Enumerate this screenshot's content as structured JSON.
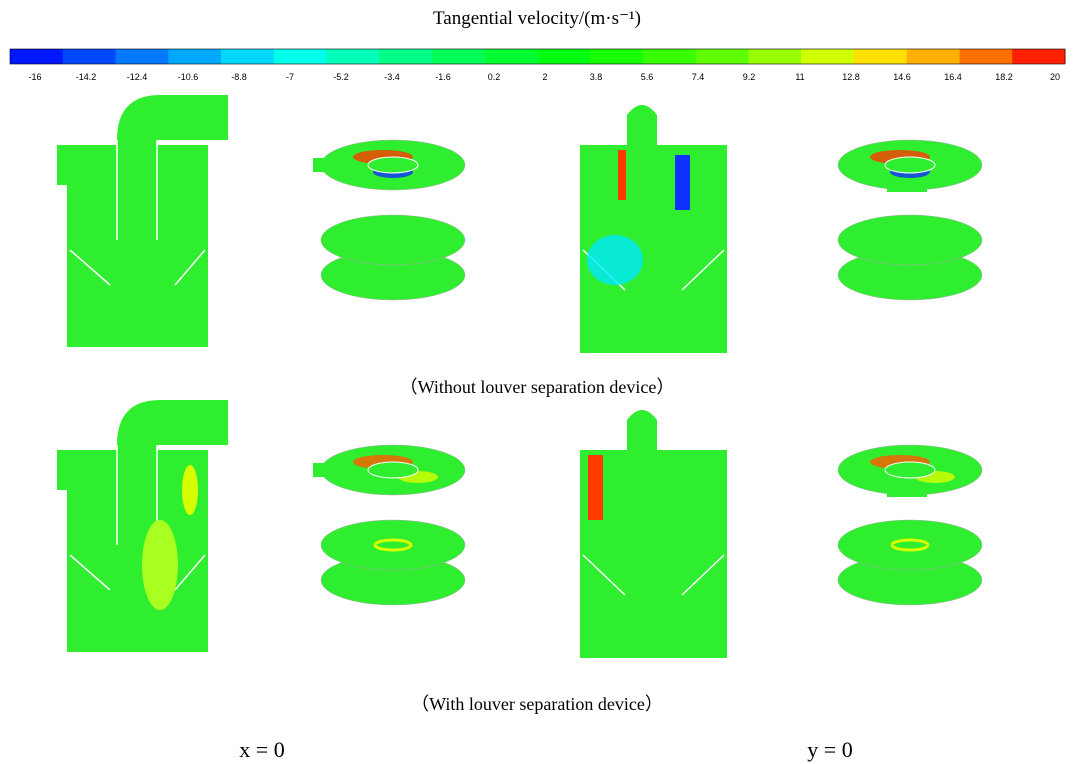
{
  "title": "Tangential velocity/(m·s⁻¹)",
  "colorbar": {
    "ticks": [
      "-16",
      "-14.2",
      "-12.4",
      "-10.6",
      "-8.8",
      "-7",
      "-5.2",
      "-3.4",
      "-1.6",
      "0.2",
      "2",
      "3.8",
      "5.6",
      "7.4",
      "9.2",
      "11",
      "12.8",
      "14.6",
      "16.4",
      "18.2",
      "20"
    ],
    "colors": [
      "#0018ff",
      "#0048ff",
      "#0078ff",
      "#00a8ff",
      "#00d8ff",
      "#00ffe8",
      "#00ffb8",
      "#00ff88",
      "#00ff58",
      "#00ff30",
      "#00ff10",
      "#18ff00",
      "#38ff00",
      "#60ff00",
      "#98ff00",
      "#d0ff00",
      "#ffe000",
      "#ffb000",
      "#ff7000",
      "#ff2000"
    ]
  },
  "captions": [
    "（Without louver separation device）",
    "（With louver separation device）"
  ],
  "planes": [
    "x = 0",
    "y = 0"
  ]
}
